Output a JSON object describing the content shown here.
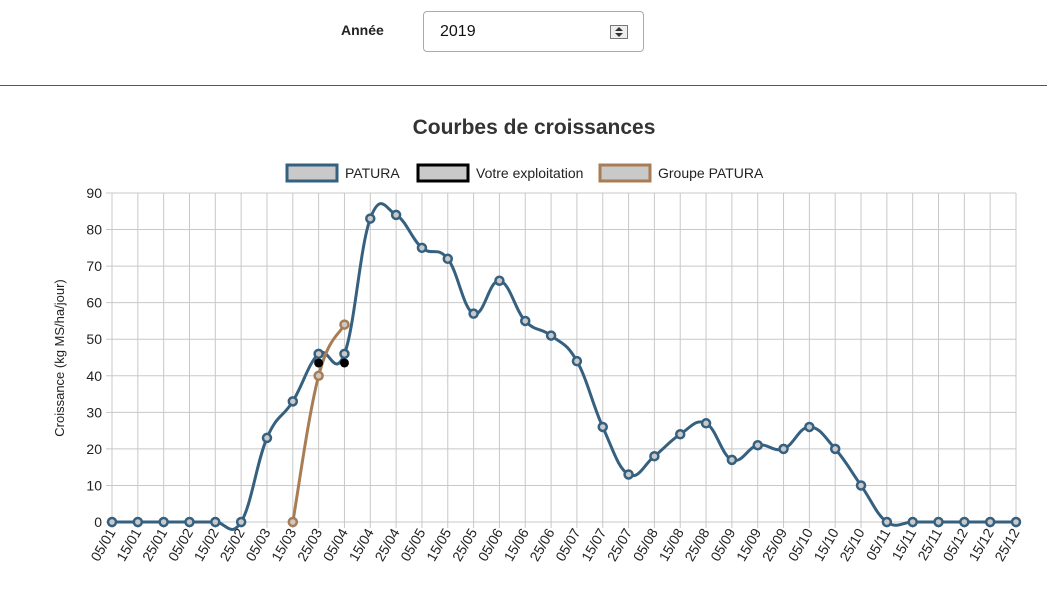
{
  "year_selector": {
    "label": "Année",
    "value": "2019"
  },
  "chart_data": {
    "type": "line",
    "title": "Courbes de croissances",
    "xlabel": "",
    "ylabel": "Croissance (kg MS/ha/jour)",
    "ylim": [
      0,
      90
    ],
    "yticks": [
      0,
      10,
      20,
      30,
      40,
      50,
      60,
      70,
      80,
      90
    ],
    "grid": true,
    "legend_position": "top",
    "categories": [
      "05/01",
      "15/01",
      "25/01",
      "05/02",
      "15/02",
      "25/02",
      "05/03",
      "15/03",
      "25/03",
      "05/04",
      "15/04",
      "25/04",
      "05/05",
      "15/05",
      "25/05",
      "05/06",
      "15/06",
      "25/06",
      "05/07",
      "15/07",
      "25/07",
      "05/08",
      "15/08",
      "25/08",
      "05/09",
      "15/09",
      "25/09",
      "05/10",
      "15/10",
      "25/10",
      "05/11",
      "15/11",
      "25/11",
      "05/12",
      "15/12",
      "25/12"
    ],
    "series": [
      {
        "name": "PATURA",
        "color": "#35607f",
        "values": [
          0,
          0,
          0,
          0,
          0,
          0,
          23,
          33,
          46,
          46,
          83,
          84,
          75,
          72,
          57,
          66,
          55,
          51,
          44,
          26,
          13,
          18,
          24,
          27,
          17,
          21,
          20,
          26,
          20,
          10,
          0,
          0,
          0,
          0,
          0,
          0
        ]
      },
      {
        "name": "Votre exploitation",
        "color": "#000000",
        "values": [
          null,
          null,
          null,
          null,
          null,
          null,
          null,
          null,
          43.5,
          43.5,
          null,
          null,
          null,
          null,
          null,
          null,
          null,
          null,
          null,
          null,
          null,
          null,
          null,
          null,
          null,
          null,
          null,
          null,
          null,
          null,
          null,
          null,
          null,
          null,
          null,
          null
        ]
      },
      {
        "name": "Groupe PATURA",
        "color": "#a87c55",
        "values": [
          null,
          null,
          null,
          null,
          null,
          null,
          null,
          0,
          40,
          54,
          null,
          null,
          null,
          null,
          null,
          null,
          null,
          null,
          null,
          null,
          null,
          null,
          null,
          null,
          null,
          null,
          null,
          null,
          null,
          null,
          null,
          null,
          null,
          null,
          null,
          null
        ]
      }
    ]
  }
}
